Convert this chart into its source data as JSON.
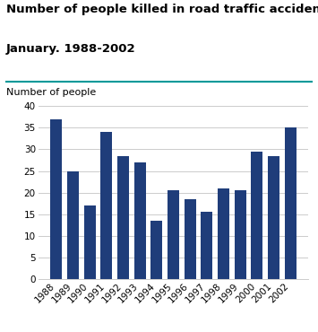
{
  "title_line1": "Number of people killed in road traffic accidents.",
  "title_line2": "January. 1988-2002",
  "ylabel": "Number of people",
  "years": [
    "1988",
    "1989",
    "1990",
    "1991",
    "1992",
    "1993",
    "1994",
    "1995",
    "1996",
    "1997",
    "1998",
    "1999",
    "2000",
    "2001",
    "2002"
  ],
  "values": [
    37,
    25,
    17,
    34,
    28.5,
    27,
    13.5,
    20.5,
    18.5,
    15.5,
    21,
    20.5,
    29.5,
    28.5,
    35
  ],
  "bar_color": "#1f3d7a",
  "ylim": [
    0,
    40
  ],
  "yticks": [
    0,
    5,
    10,
    15,
    20,
    25,
    30,
    35,
    40
  ],
  "title_fontsize": 9.5,
  "ylabel_fontsize": 8,
  "tick_fontsize": 7.5,
  "grid_color": "#cccccc",
  "teal_color": "#009999",
  "bg_color": "#ffffff"
}
